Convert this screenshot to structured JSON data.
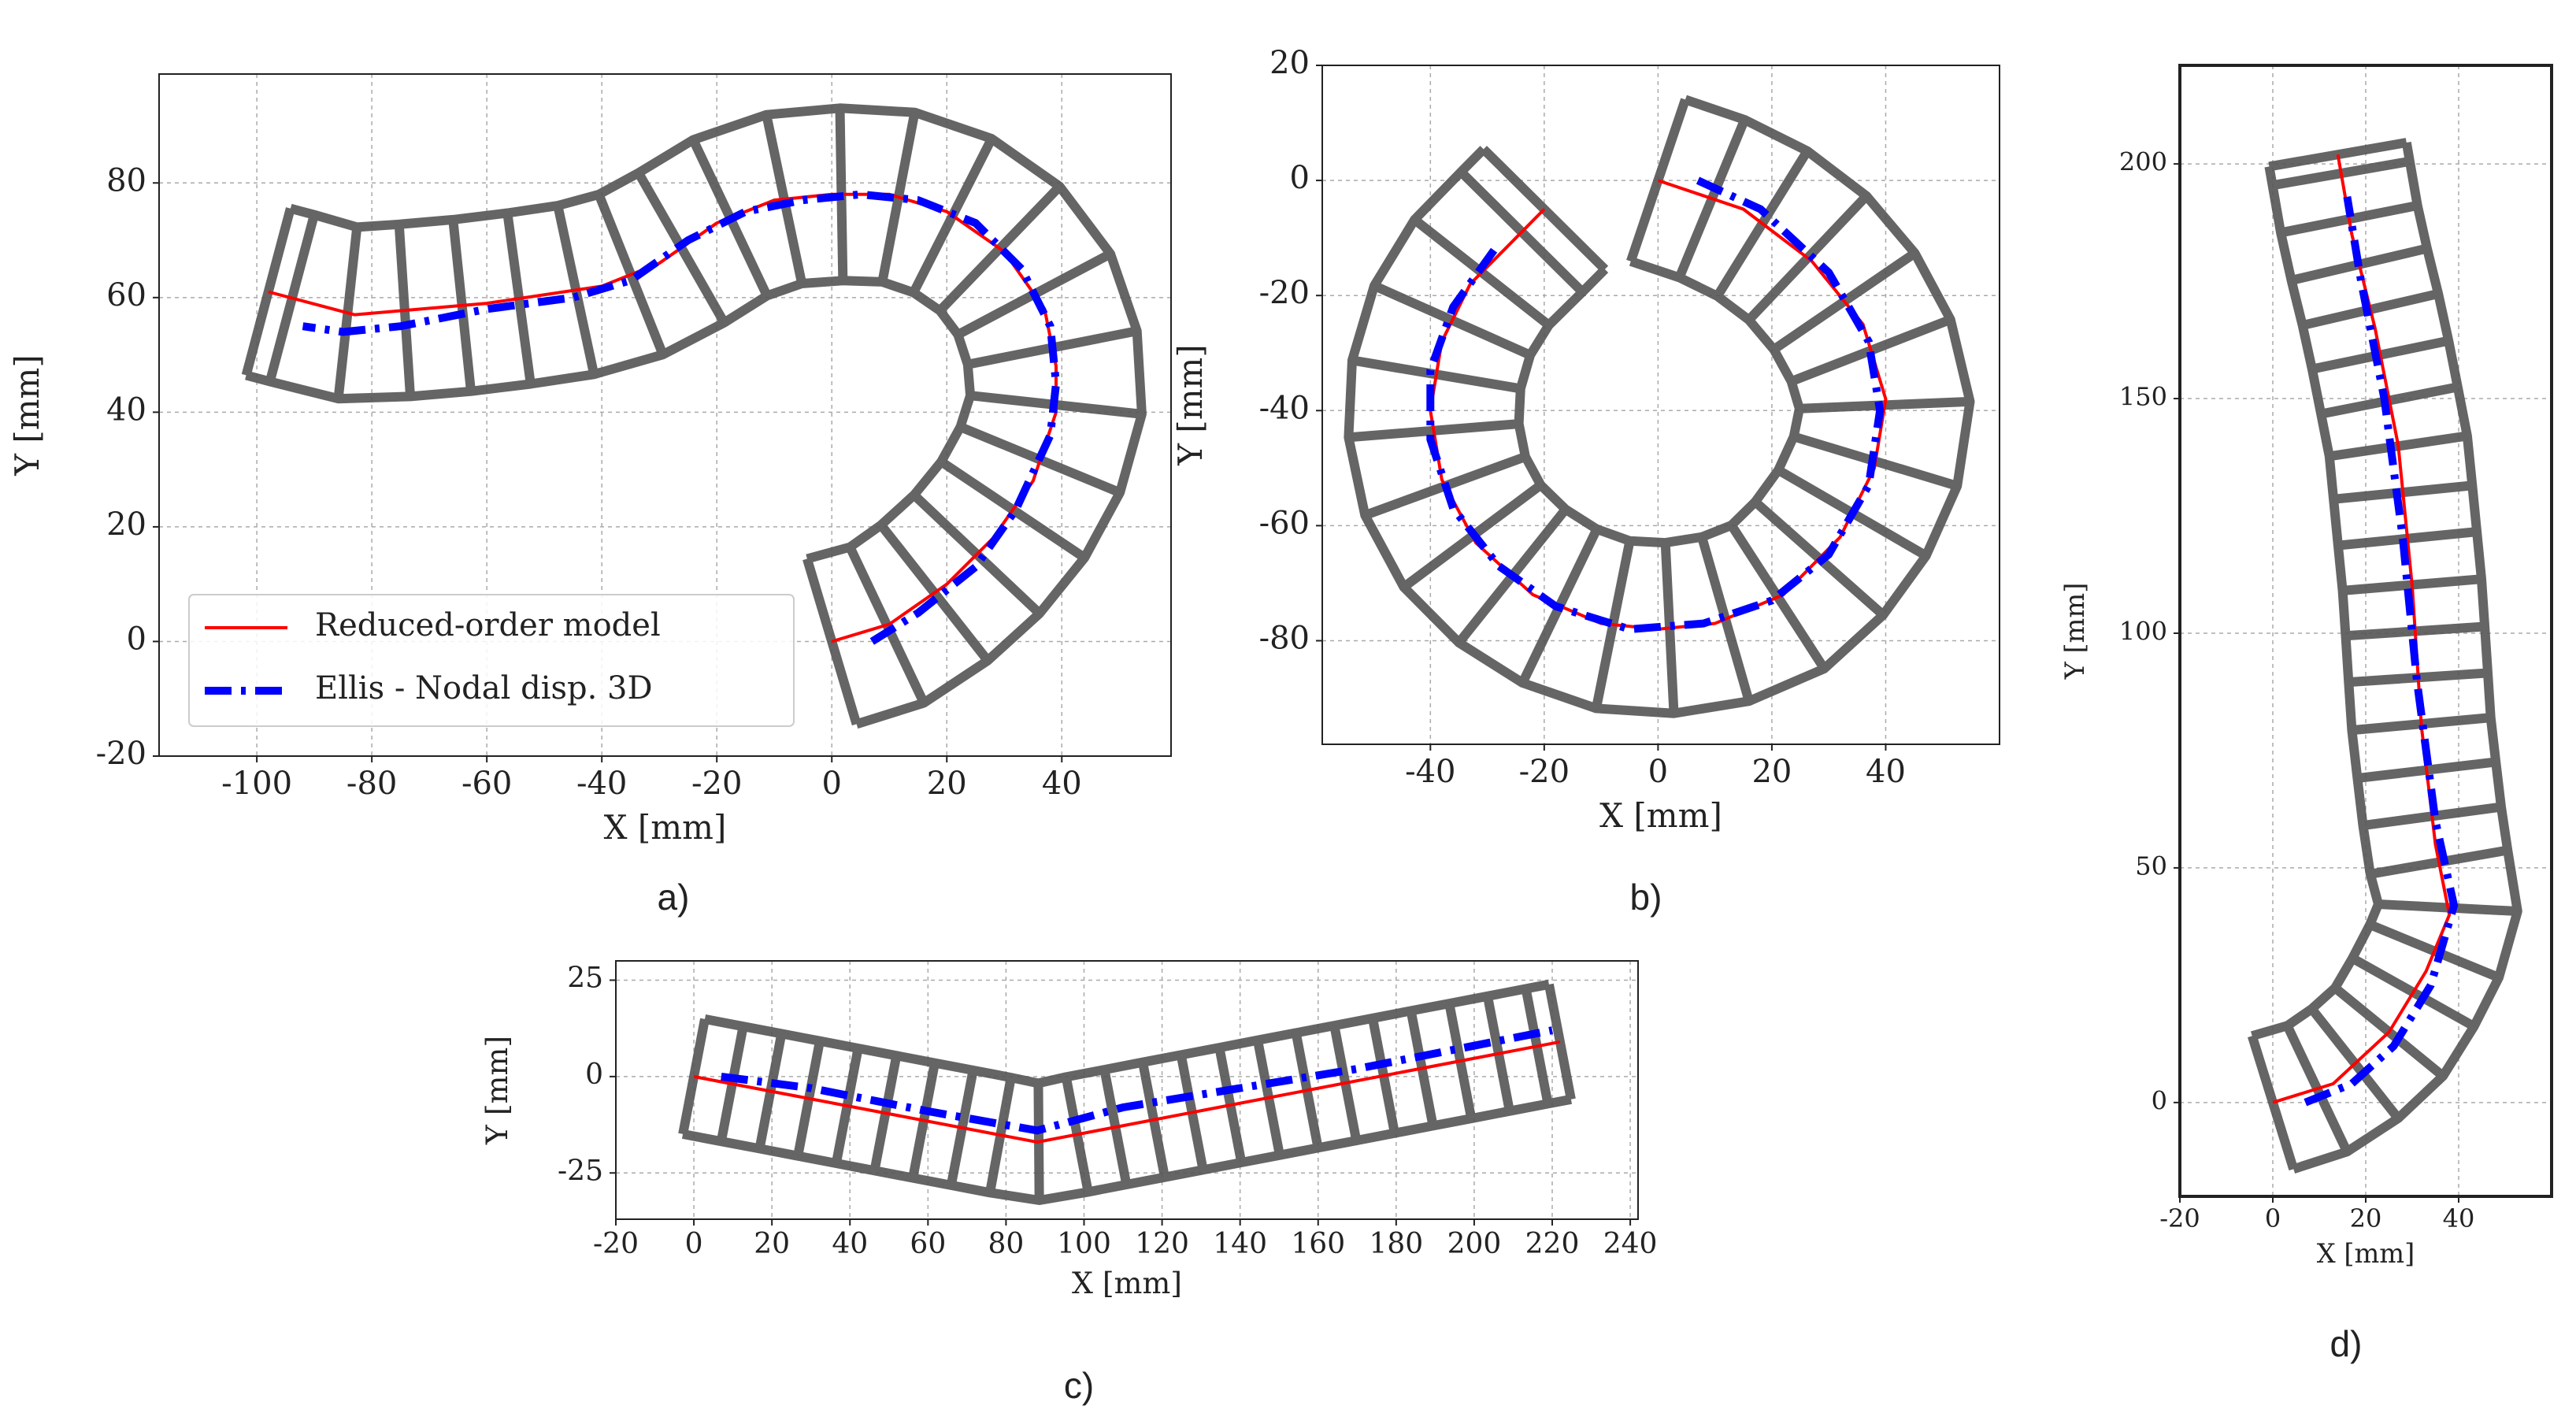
{
  "chart_data": [
    {
      "type": "line",
      "label": "a)",
      "xlabel": "X [mm]",
      "ylabel": "Y [mm]",
      "xlim": [
        -117,
        59
      ],
      "ylim": [
        -20,
        99
      ],
      "xticks": [
        -100,
        -80,
        -60,
        -40,
        -20,
        0,
        20,
        40
      ],
      "yticks": [
        -20,
        0,
        20,
        40,
        60,
        80
      ],
      "grid": true,
      "legend": "lower left",
      "series": [
        {
          "name": "Reduced-order model",
          "color": "#ff0000",
          "linestyle": "-",
          "x": [
            0,
            10,
            20,
            28,
            35,
            39,
            39,
            37,
            30,
            20,
            10,
            0,
            -10,
            -20,
            -30,
            -40,
            -60,
            -83,
            -98
          ],
          "values": [
            0,
            3,
            10,
            18,
            28,
            40,
            48,
            58,
            68,
            75,
            78,
            78,
            77,
            73,
            66,
            62,
            59,
            57,
            61
          ]
        },
        {
          "name": "Ellis - Nodal disp. 3D",
          "color": "#0000ff",
          "linestyle": "-.",
          "x": [
            7,
            15,
            25,
            32,
            38,
            39,
            38,
            33,
            25,
            15,
            5,
            -5,
            -15,
            -25,
            -35,
            -45,
            -60,
            -75,
            -85,
            -92
          ],
          "values": [
            0,
            5,
            13,
            23,
            36,
            45,
            55,
            65,
            73,
            77,
            78,
            77,
            75,
            70,
            63,
            60,
            58,
            55,
            54,
            55
          ]
        }
      ]
    },
    {
      "type": "line",
      "label": "b)",
      "xlabel": "X [mm]",
      "ylabel": "Y [mm]",
      "xlim": [
        -59,
        60
      ],
      "ylim": [
        -98,
        20
      ],
      "xticks": [
        -40,
        -20,
        0,
        20,
        40
      ],
      "yticks": [
        -80,
        -60,
        -40,
        -20,
        0,
        20
      ],
      "grid": true,
      "series": [
        {
          "color": "#ff0000",
          "linestyle": "-",
          "x": [
            0,
            15,
            27,
            36,
            40,
            38,
            32,
            22,
            10,
            0,
            -10,
            -22,
            -32,
            -38,
            -40,
            -38,
            -33,
            -27,
            -20
          ],
          "values": [
            0,
            -5,
            -14,
            -25,
            -38,
            -50,
            -62,
            -72,
            -77,
            -78,
            -77,
            -72,
            -63,
            -52,
            -40,
            -28,
            -18,
            -12,
            -5
          ]
        },
        {
          "color": "#0000ff",
          "linestyle": "-.",
          "x": [
            7,
            18,
            30,
            37,
            39,
            37,
            30,
            20,
            8,
            -5,
            -18,
            -28,
            -36,
            -40,
            -40,
            -36,
            -28
          ],
          "values": [
            0,
            -5,
            -16,
            -28,
            -40,
            -53,
            -65,
            -73,
            -77,
            -78,
            -74,
            -67,
            -57,
            -45,
            -33,
            -22,
            -11
          ]
        }
      ]
    },
    {
      "type": "line",
      "label": "c)",
      "xlabel": "X [mm]",
      "ylabel": "Y [mm]",
      "xlim": [
        -20,
        242
      ],
      "ylim": [
        -37,
        30
      ],
      "xticks": [
        -20,
        0,
        20,
        40,
        60,
        80,
        100,
        120,
        140,
        160,
        180,
        200,
        220,
        240
      ],
      "yticks": [
        -25,
        0,
        25
      ],
      "grid": true,
      "series": [
        {
          "color": "#ff0000",
          "linestyle": "-",
          "x": [
            0,
            88,
            222
          ],
          "values": [
            0,
            -17,
            9
          ]
        },
        {
          "color": "#0000ff",
          "linestyle": "-.",
          "x": [
            7,
            30,
            60,
            88,
            110,
            140,
            170,
            200,
            220
          ],
          "values": [
            0,
            -3,
            -9,
            -14,
            -8,
            -3,
            2,
            8,
            12
          ]
        }
      ]
    },
    {
      "type": "line",
      "label": "d)",
      "xlabel": "X [mm]",
      "ylabel": "Y [mm]",
      "xlim": [
        -20,
        60
      ],
      "ylim": [
        -20,
        221
      ],
      "xticks": [
        -20,
        0,
        20,
        40
      ],
      "yticks": [
        0,
        50,
        100,
        150,
        200
      ],
      "grid": true,
      "series": [
        {
          "color": "#ff0000",
          "linestyle": "-",
          "x": [
            0,
            13,
            25,
            33,
            38,
            35,
            32,
            30,
            27,
            22,
            17,
            14
          ],
          "values": [
            0,
            4,
            15,
            28,
            40,
            55,
            80,
            110,
            140,
            165,
            185,
            202
          ]
        },
        {
          "color": "#0000ff",
          "linestyle": "-.",
          "x": [
            7,
            17,
            26,
            34,
            39,
            35,
            31,
            28,
            24,
            19,
            16
          ],
          "values": [
            0,
            4,
            12,
            25,
            42,
            60,
            90,
            120,
            150,
            175,
            193
          ]
        }
      ]
    }
  ]
}
